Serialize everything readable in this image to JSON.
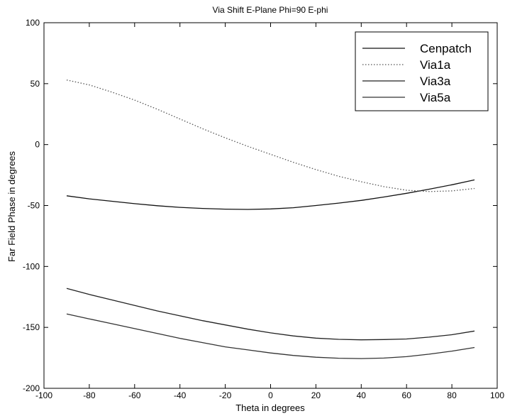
{
  "chart_data": {
    "type": "line",
    "title": "Via Shift E-Plane Phi=90 E-phi",
    "xlabel": "Theta in degrees",
    "ylabel": "Far Field Phase in degrees",
    "xlim": [
      -100,
      100
    ],
    "ylim": [
      -200,
      100
    ],
    "xticks": [
      -100,
      -80,
      -60,
      -40,
      -20,
      0,
      20,
      40,
      60,
      80,
      100
    ],
    "yticks": [
      -200,
      -150,
      -100,
      -50,
      0,
      50,
      100
    ],
    "xtick_labels": [
      "-100",
      "-80",
      "-60",
      "-40",
      "-20",
      "0",
      "20",
      "40",
      "60",
      "80",
      "100"
    ],
    "ytick_labels": [
      "-200",
      "-150",
      "-100",
      "-50",
      "0",
      "50",
      "100"
    ],
    "grid": false,
    "legend_position": "top-right",
    "x": [
      -90,
      -80,
      -70,
      -60,
      -50,
      -40,
      -30,
      -20,
      -10,
      0,
      10,
      20,
      30,
      40,
      50,
      60,
      70,
      80,
      90
    ],
    "series": [
      {
        "name": "Cenpatch",
        "color": "#111111",
        "dash": "solid",
        "values": [
          -42,
          -44.5,
          -46.5,
          -48.5,
          -50.2,
          -51.5,
          -52.4,
          -53,
          -53.2,
          -52.8,
          -51.8,
          -50,
          -48,
          -45.8,
          -43,
          -40,
          -36.6,
          -33,
          -29
        ]
      },
      {
        "name": "Via1a",
        "color": "#555555",
        "dash": "dotted",
        "values": [
          53,
          49,
          43,
          36.5,
          29,
          21,
          13,
          5.5,
          -1.5,
          -8,
          -14.5,
          -20.5,
          -26,
          -30.5,
          -34.5,
          -37.5,
          -38.5,
          -38,
          -36
        ]
      },
      {
        "name": "Via3a",
        "color": "#222222",
        "dash": "solid",
        "values": [
          -118,
          -123,
          -127.5,
          -132,
          -136.5,
          -140.5,
          -144.5,
          -148,
          -151.5,
          -154.5,
          -157,
          -158.8,
          -159.8,
          -160.2,
          -160,
          -159.5,
          -158,
          -156,
          -153
        ]
      },
      {
        "name": "Via5a",
        "color": "#333333",
        "dash": "solid",
        "values": [
          -139,
          -143,
          -147,
          -151,
          -155,
          -159,
          -162.5,
          -166,
          -168.5,
          -171,
          -173,
          -174.5,
          -175.3,
          -175.6,
          -175.2,
          -174,
          -172,
          -169.5,
          -166.5
        ]
      }
    ]
  }
}
